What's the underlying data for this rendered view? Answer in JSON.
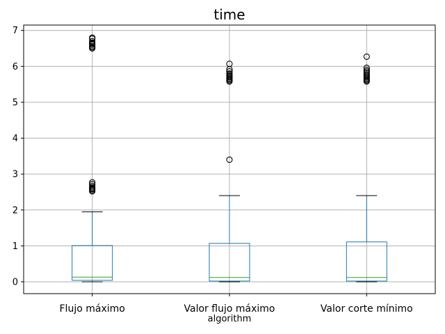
{
  "chart_data": {
    "type": "boxplot",
    "title": "time",
    "xlabel": "algorithm",
    "ylabel": "",
    "ylim": [
      -0.33,
      7.15
    ],
    "yticks": [
      0,
      1,
      2,
      3,
      4,
      5,
      6,
      7
    ],
    "grid": true,
    "colors": {
      "box": "#1f77b4",
      "median": "#2ca02c",
      "whisker_cap": "#000000",
      "grid": "#b0b0b0",
      "flier": "#000000"
    },
    "categories": [
      "Flujo máximo",
      "Valor flujo máximo",
      "Valor corte mínimo"
    ],
    "boxes": [
      {
        "q1": 0.04,
        "median": 0.13,
        "q3": 1.01,
        "whislo": 0.0,
        "whishi": 1.95,
        "fliers": [
          2.52,
          2.55,
          2.58,
          2.6,
          2.63,
          2.67,
          2.72,
          2.77,
          6.5,
          6.53,
          6.56,
          6.6,
          6.63,
          6.66,
          6.7,
          6.77,
          6.8
        ]
      },
      {
        "q1": 0.02,
        "median": 0.12,
        "q3": 1.07,
        "whislo": 0.0,
        "whishi": 2.4,
        "fliers": [
          3.4,
          5.58,
          5.61,
          5.64,
          5.67,
          5.7,
          5.73,
          5.76,
          5.8,
          5.86,
          5.92,
          6.07
        ]
      },
      {
        "q1": 0.02,
        "median": 0.12,
        "q3": 1.11,
        "whislo": 0.0,
        "whishi": 2.4,
        "fliers": [
          5.58,
          5.61,
          5.64,
          5.67,
          5.7,
          5.74,
          5.78,
          5.82,
          5.86,
          5.9,
          5.96,
          6.27
        ]
      }
    ]
  }
}
